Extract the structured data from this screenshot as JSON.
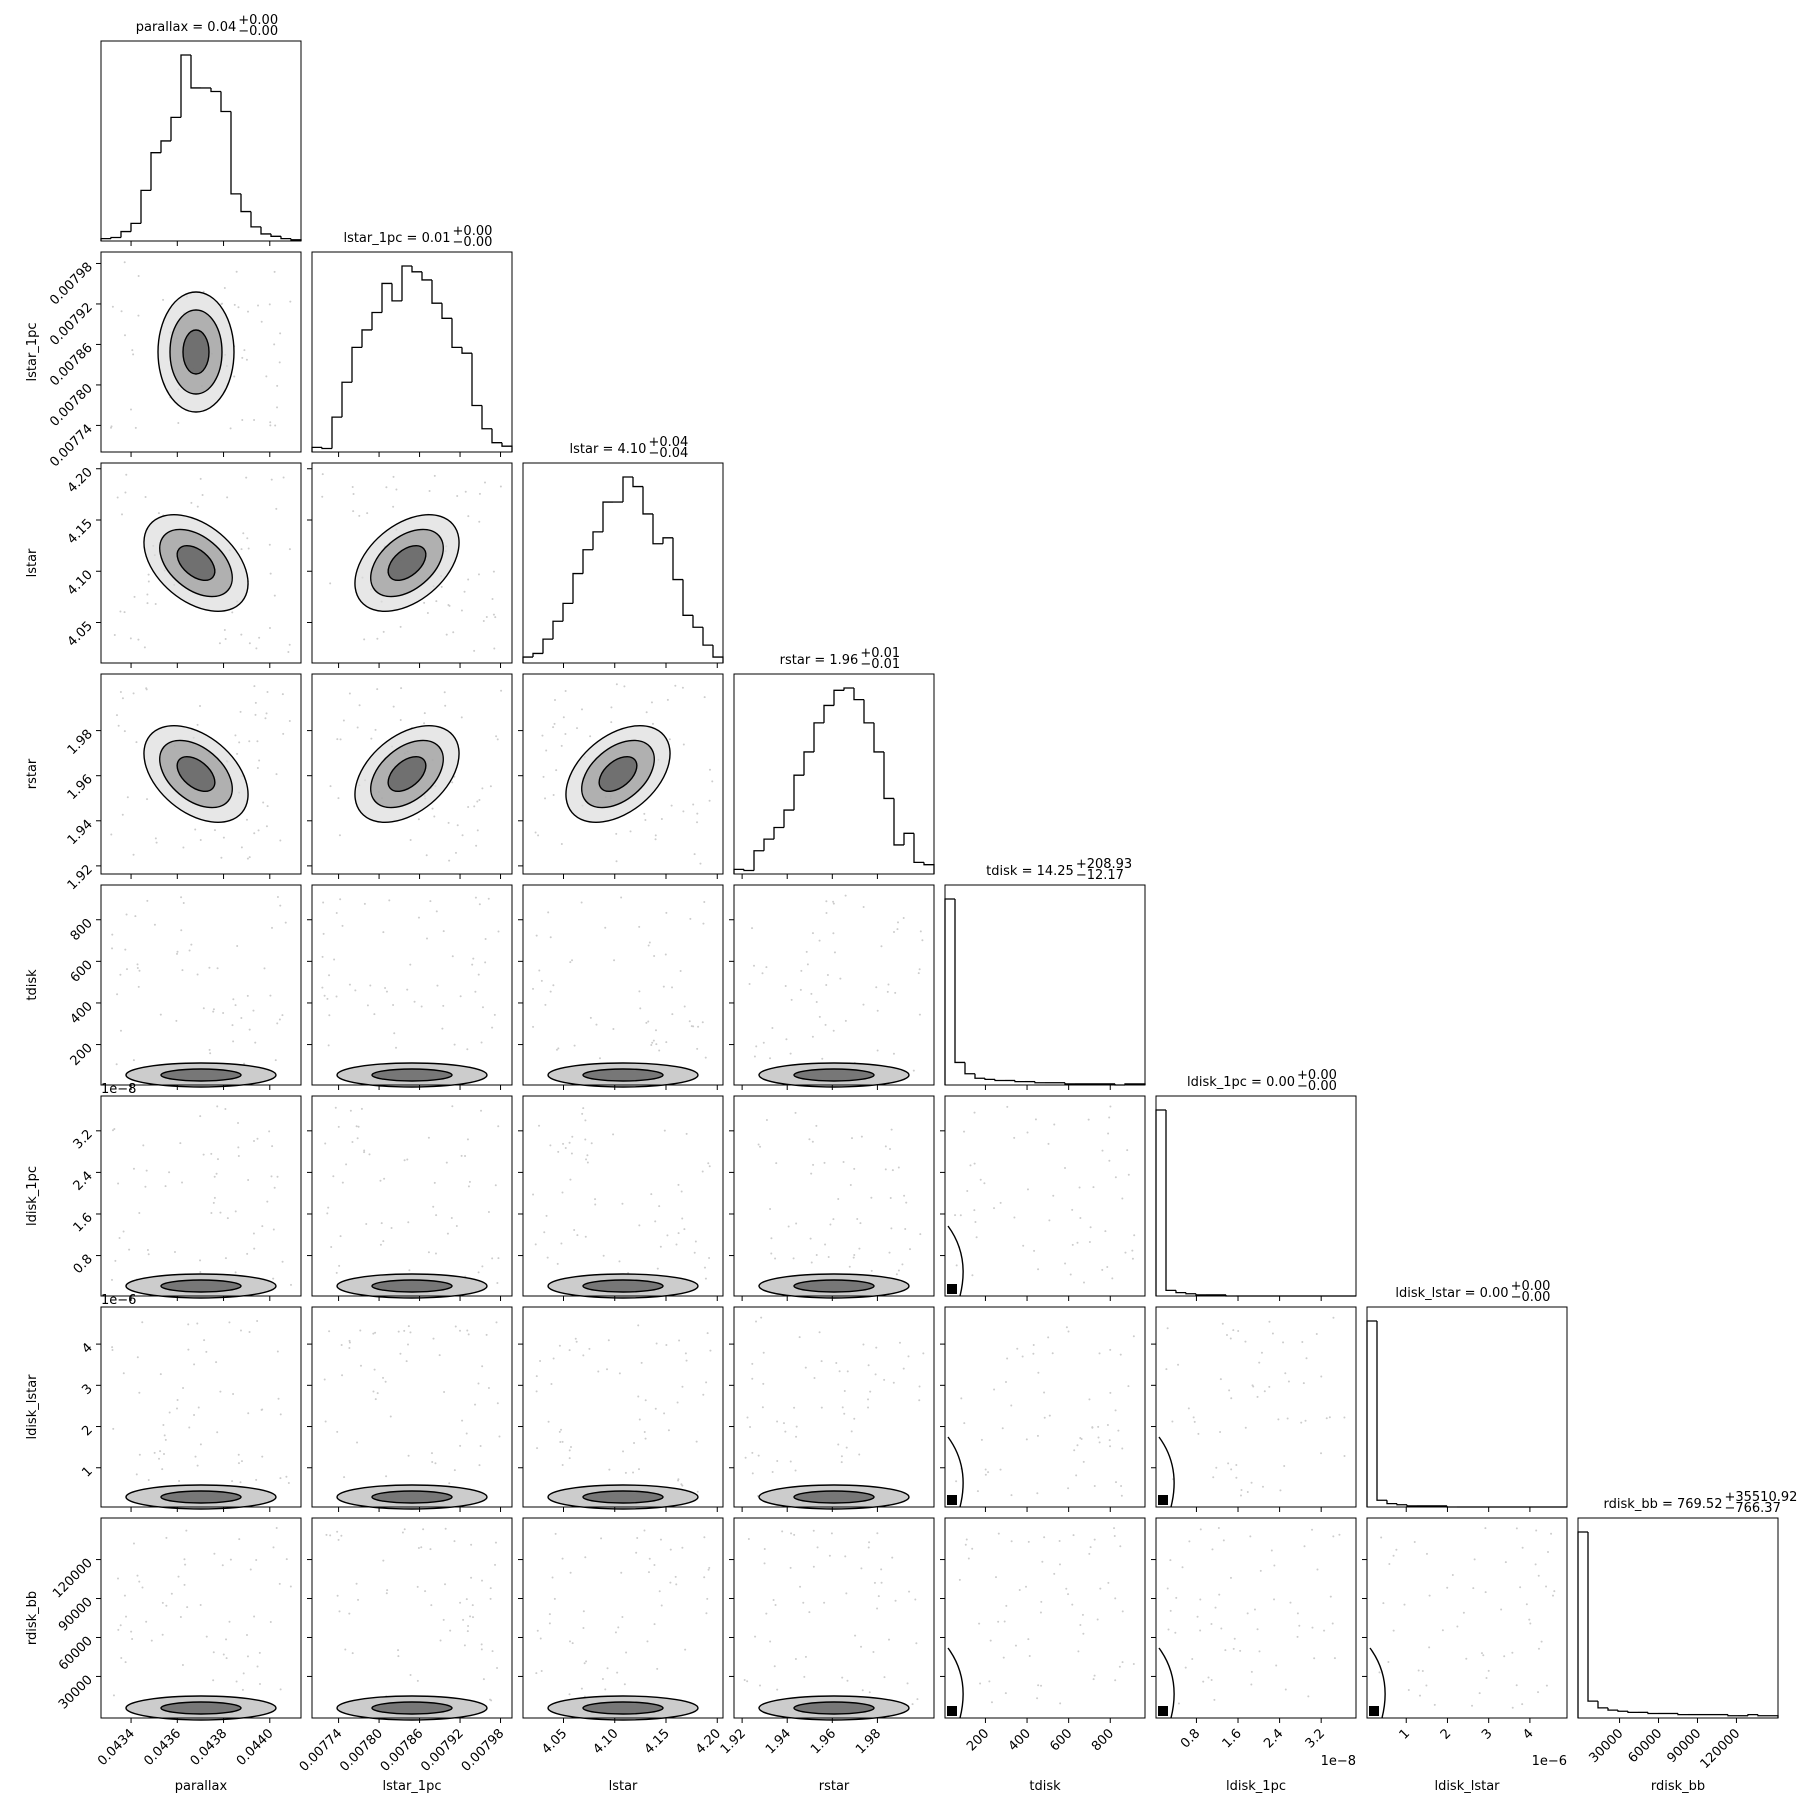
{
  "chart_data": {
    "type": "corner",
    "parameters": [
      {
        "name": "parallax",
        "title": "parallax = 0.04",
        "upper": "+0.00",
        "lower": "−0.00",
        "lim": [
          0.04327,
          0.044135
        ],
        "ticks": [
          0.0434,
          0.0436,
          0.0438,
          {
            "value": 0.044,
            "label": "0.0440"
          }
        ],
        "counts": [
          2,
          3,
          8,
          15,
          43,
          75,
          85,
          105,
          158,
          130,
          130,
          127,
          110,
          40,
          25,
          12,
          6,
          4,
          2,
          1
        ]
      },
      {
        "name": "lstar_1pc",
        "title": "lstar_1pc = 0.01",
        "upper": "+0.00",
        "lower": "−0.00",
        "lim": [
          0.0077006,
          0.007997
        ],
        "ticks": [
          0.00774,
          {
            "value": 0.0078,
            "label": "0.00780"
          },
          0.00786,
          0.00792,
          0.00798
        ],
        "counts": [
          4,
          3,
          30,
          60,
          90,
          105,
          120,
          145,
          130,
          160,
          155,
          148,
          128,
          115,
          90,
          85,
          40,
          20,
          8,
          5
        ]
      },
      {
        "name": "lstar",
        "title": "lstar = 4.10",
        "upper": "+0.04",
        "lower": "−0.04",
        "lim": [
          4.0105,
          4.2056
        ],
        "ticks": [
          4.05,
          {
            "value": 4.1,
            "label": "4.10"
          },
          4.15,
          {
            "value": 4.2,
            "label": "4.20"
          }
        ],
        "counts": [
          5,
          8,
          20,
          35,
          50,
          75,
          95,
          110,
          135,
          135,
          156,
          148,
          125,
          100,
          105,
          70,
          40,
          30,
          15,
          5
        ]
      },
      {
        "name": "rstar",
        "title": "rstar = 1.96",
        "upper": "+0.01",
        "lower": "−0.01",
        "lim": [
          1.9164,
          2.0051
        ],
        "ticks": [
          1.92,
          1.94,
          1.96,
          1.98
        ],
        "counts": [
          4,
          3,
          20,
          30,
          40,
          55,
          85,
          105,
          130,
          145,
          158,
          160,
          150,
          130,
          105,
          65,
          25,
          35,
          10,
          8
        ]
      },
      {
        "name": "tdisk",
        "title": "tdisk = 14.25",
        "upper": "+208.93",
        "lower": "−12.17",
        "lim": [
          5.6,
          967
        ],
        "ticks": [
          200,
          400,
          600,
          800
        ],
        "counts": [
          165,
          20,
          10,
          6,
          5,
          4,
          4,
          3,
          3,
          2,
          2,
          2,
          1,
          1,
          1,
          1,
          1,
          0,
          1,
          1
        ]
      },
      {
        "name": "ldisk_1pc",
        "title": "ldisk_1pc = 0.00",
        "upper": "+0.00",
        "lower": "−0.00",
        "lim": [
          0.022,
          3.87
        ],
        "offset": "1e−8",
        "ticks": [
          0.8,
          1.6,
          2.4,
          3.2
        ],
        "counts": [
          165,
          5,
          3,
          2,
          1,
          1,
          1,
          0,
          0,
          0,
          0,
          0,
          0,
          0,
          0,
          0,
          0,
          0,
          0,
          0
        ]
      },
      {
        "name": "ldisk_lstar",
        "title": "ldisk_lstar = 0.00",
        "upper": "+0.00",
        "lower": "−0.00",
        "lim": [
          0.048,
          4.9
        ],
        "offset": "1e−6",
        "ticks": [
          1,
          2,
          3,
          4
        ],
        "counts": [
          165,
          6,
          3,
          2,
          1,
          1,
          1,
          1,
          0,
          0,
          0,
          0,
          0,
          0,
          0,
          0,
          0,
          0,
          0,
          0
        ]
      },
      {
        "name": "rdisk_bb",
        "title": "rdisk_bb = 769.52",
        "upper": "+35510.92",
        "lower": "−766.37",
        "lim": [
          -2000,
          152000
        ],
        "ticks": [
          30000,
          60000,
          90000,
          120000
        ],
        "counts": [
          165,
          15,
          9,
          7,
          6,
          5,
          5,
          4,
          4,
          4,
          3,
          3,
          3,
          3,
          3,
          2,
          2,
          3,
          2,
          2
        ]
      }
    ]
  }
}
